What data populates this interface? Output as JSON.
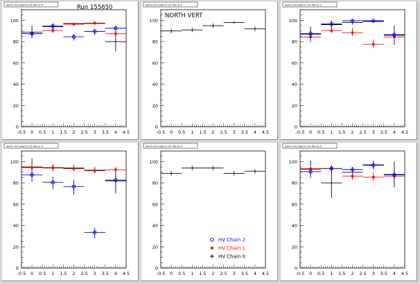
{
  "canvas": {
    "run_label": "Run 155650",
    "background": "#d6d6d6",
    "pad_color": "#ffffff"
  },
  "colors": {
    "chain0": "#000000",
    "chain1": "#ff0000",
    "chain2": "#0000ff"
  },
  "legend": {
    "items": [
      {
        "label": "HV Chain 2",
        "marker": "open-circle",
        "color": "#0000ff"
      },
      {
        "label": "HV Chain 1",
        "marker": "star",
        "color": "#ff0000"
      },
      {
        "label": "HV Chain 0",
        "marker": "plus",
        "color": "#000000"
      }
    ]
  },
  "chart_data": [
    {
      "type": "scatter",
      "pad_title": "dam1 (H) Gdam1 (V) Pan el 0",
      "title": "",
      "xlim": [
        -0.5,
        4.5
      ],
      "ylim": [
        0,
        110
      ],
      "xticks": [
        "-0.5",
        "0",
        "0.5",
        "1",
        "1.5",
        "2",
        "2.5",
        "3",
        "3.5",
        "4",
        "4.5"
      ],
      "yticks": [
        "0",
        "20",
        "40",
        "60",
        "80",
        "100"
      ],
      "series": [
        {
          "chain": 0,
          "x": [
            0,
            1,
            2,
            3,
            4
          ],
          "y": [
            89,
            94,
            97,
            97,
            80
          ],
          "yerr": [
            6,
            3,
            1,
            1,
            9
          ]
        },
        {
          "chain": 1,
          "x": [
            0,
            1,
            2,
            3,
            4
          ],
          "y": [
            88,
            91,
            97,
            98,
            88
          ],
          "yerr": [
            2,
            3,
            1,
            1,
            2
          ]
        },
        {
          "chain": 2,
          "x": [
            0,
            1,
            2,
            3,
            4
          ],
          "y": [
            87,
            94,
            84,
            89,
            92
          ],
          "yerr": [
            4,
            3,
            3,
            3,
            3
          ]
        }
      ]
    },
    {
      "type": "scatter",
      "pad_title": "dam1 (H) Gdam1 (V) Pan el 1",
      "title": "NORTH VERT",
      "xlim": [
        -0.5,
        4.5
      ],
      "ylim": [
        0,
        110
      ],
      "xticks": [
        "-0.5",
        "0",
        "0.5",
        "1",
        "1.5",
        "2",
        "2.5",
        "3",
        "3.5",
        "4",
        "4.5"
      ],
      "yticks": [
        "0",
        "20",
        "40",
        "60",
        "80",
        "100"
      ],
      "series": [
        {
          "chain": 0,
          "x": [
            0,
            1,
            2,
            3,
            4
          ],
          "y": [
            90,
            91,
            95,
            98,
            92
          ],
          "yerr": [
            2,
            2,
            2,
            1,
            2
          ]
        }
      ]
    },
    {
      "type": "scatter",
      "pad_title": "dam1 (H) Gdam1 (V) Pan el 2",
      "title": "",
      "xlim": [
        -0.5,
        4.5
      ],
      "ylim": [
        0,
        110
      ],
      "xticks": [
        "-0.5",
        "0",
        "0.5",
        "1",
        "1.5",
        "2",
        "2.5",
        "3",
        "3.5",
        "4",
        "4.5"
      ],
      "yticks": [
        "0",
        "20",
        "40",
        "60",
        "80",
        "100"
      ],
      "series": [
        {
          "chain": 0,
          "x": [
            0,
            1,
            2,
            3,
            4
          ],
          "y": [
            87,
            96,
            98,
            99,
            86
          ],
          "yerr": [
            7,
            4,
            2,
            1,
            9
          ]
        },
        {
          "chain": 1,
          "x": [
            0,
            1,
            2,
            3,
            4
          ],
          "y": [
            85,
            91,
            89,
            78,
            85
          ],
          "yerr": [
            4,
            3,
            4,
            4,
            3
          ]
        },
        {
          "chain": 2,
          "x": [
            0,
            1,
            2,
            3,
            4
          ],
          "y": [
            87,
            96,
            99,
            99,
            86
          ],
          "yerr": [
            4,
            3,
            2,
            1,
            3
          ]
        }
      ]
    },
    {
      "type": "scatter",
      "pad_title": "dam1 (H) Gdam1 (V) Pan el 3",
      "title": "",
      "xlim": [
        -0.5,
        4.5
      ],
      "ylim": [
        0,
        110
      ],
      "xticks": [
        "-0.5",
        "0",
        "0.5",
        "1",
        "1.5",
        "2",
        "2.5",
        "3",
        "3.5",
        "4",
        "4.5"
      ],
      "yticks": [
        "0",
        "20",
        "40",
        "60",
        "80",
        "100"
      ],
      "series": [
        {
          "chain": 0,
          "x": [
            0,
            1,
            2,
            3,
            4
          ],
          "y": [
            95,
            94,
            94,
            92,
            82
          ],
          "yerr": [
            8,
            3,
            2,
            2,
            12
          ]
        },
        {
          "chain": 1,
          "x": [
            0,
            1,
            2,
            3,
            4
          ],
          "y": [
            95,
            95,
            94,
            92,
            93
          ],
          "yerr": [
            3,
            3,
            3,
            3,
            2
          ]
        },
        {
          "chain": 2,
          "x": [
            0,
            1,
            2,
            3,
            4
          ],
          "y": [
            87,
            80,
            76,
            33,
            82
          ],
          "yerr": [
            6,
            6,
            7,
            5,
            6
          ]
        }
      ]
    },
    {
      "type": "scatter",
      "pad_title": "dam1 (H) Gdam1 (V) Pan el 4",
      "title": "",
      "xlim": [
        -0.5,
        4.5
      ],
      "ylim": [
        0,
        110
      ],
      "xticks": [
        "-0.5",
        "0",
        "0.5",
        "1",
        "1.5",
        "2",
        "2.5",
        "3",
        "3.5",
        "4",
        "4.5"
      ],
      "yticks": [
        "0",
        "20",
        "40",
        "60",
        "80",
        "100"
      ],
      "series": [
        {
          "chain": 0,
          "x": [
            0,
            1,
            2,
            3,
            4
          ],
          "y": [
            89,
            94,
            94,
            89,
            91
          ],
          "yerr": [
            2,
            2,
            2,
            2,
            2
          ]
        }
      ]
    },
    {
      "type": "scatter",
      "pad_title": "dam1 (H) Gdam1 (V) Pan el 5",
      "title": "",
      "xlim": [
        -0.5,
        4.5
      ],
      "ylim": [
        0,
        110
      ],
      "xticks": [
        "-0.5",
        "0",
        "0.5",
        "1",
        "1.5",
        "2",
        "2.5",
        "3",
        "3.5",
        "4",
        "4.5"
      ],
      "yticks": [
        "0",
        "20",
        "40",
        "60",
        "80",
        "100"
      ],
      "series": [
        {
          "chain": 0,
          "x": [
            0,
            1,
            2,
            3,
            4
          ],
          "y": [
            93,
            80,
            90,
            97,
            88
          ],
          "yerr": [
            8,
            14,
            5,
            4,
            12
          ]
        },
        {
          "chain": 1,
          "x": [
            0,
            1,
            2,
            3,
            4
          ],
          "y": [
            94,
            94,
            87,
            86,
            87
          ],
          "yerr": [
            3,
            3,
            4,
            4,
            3
          ]
        },
        {
          "chain": 2,
          "x": [
            0,
            1,
            2,
            3,
            4
          ],
          "y": [
            90,
            93,
            92,
            96,
            87
          ],
          "yerr": [
            4,
            3,
            3,
            3,
            4
          ]
        }
      ]
    }
  ]
}
